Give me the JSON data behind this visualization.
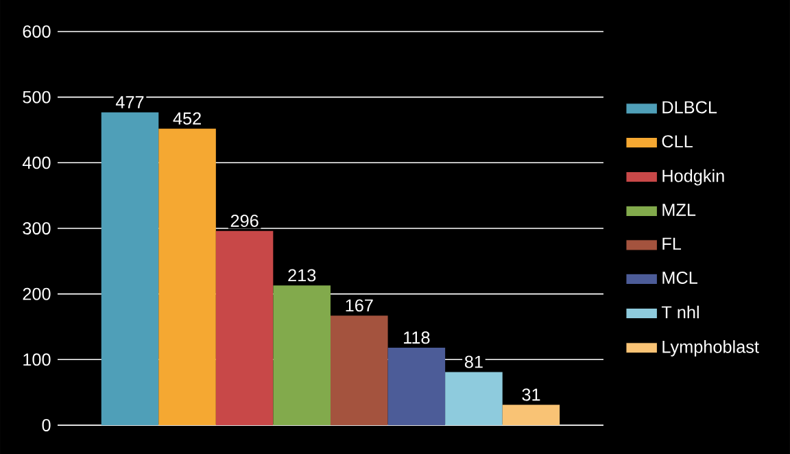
{
  "chart_data": {
    "type": "bar",
    "categories": [
      null
    ],
    "series": [
      {
        "name": "DLBCL",
        "color": "#4f9fb8",
        "values": [
          477
        ]
      },
      {
        "name": "CLL",
        "color": "#f5a832",
        "values": [
          452
        ]
      },
      {
        "name": "Hodgkin",
        "color": "#c84848",
        "values": [
          296
        ]
      },
      {
        "name": "MZL",
        "color": "#82aa4c",
        "values": [
          213
        ]
      },
      {
        "name": "FL",
        "color": "#a4533e",
        "values": [
          167
        ]
      },
      {
        "name": "MCL",
        "color": "#4c5c98",
        "values": [
          118
        ]
      },
      {
        "name": "T nhl",
        "color": "#8ecbdd",
        "values": [
          81
        ]
      },
      {
        "name": "Lymphoblast",
        "color": "#f9c375",
        "values": [
          31
        ]
      }
    ],
    "ylim": [
      0,
      600
    ],
    "yticks": [
      0,
      100,
      200,
      300,
      400,
      500,
      600
    ],
    "grid": "y",
    "legend": "right",
    "data_labels": true
  }
}
